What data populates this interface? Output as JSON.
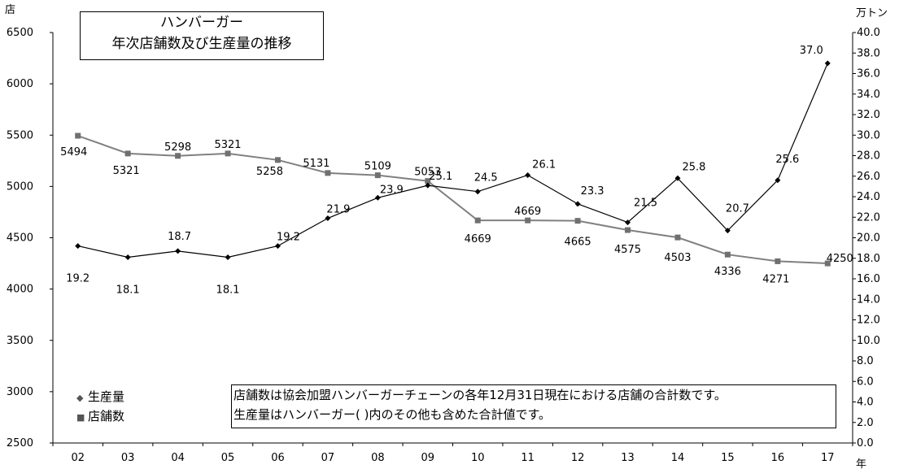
{
  "chart_data": {
    "type": "line",
    "title": [
      "ハンバーガー",
      "年次店舗数及び生産量の推移"
    ],
    "categories": [
      "02",
      "03",
      "04",
      "05",
      "06",
      "07",
      "08",
      "09",
      "10",
      "11",
      "12",
      "13",
      "14",
      "15",
      "16",
      "17"
    ],
    "x_unit": "年",
    "y_left": {
      "unit": "店",
      "min": 2500,
      "max": 6500,
      "ticks": [
        2500,
        3000,
        3500,
        4000,
        4500,
        5000,
        5500,
        6000,
        6500
      ]
    },
    "y_right": {
      "unit": "万トン",
      "min": 0.0,
      "max": 40.0,
      "ticks": [
        "0.0",
        "2.0",
        "4.0",
        "6.0",
        "8.0",
        "10.0",
        "12.0",
        "14.0",
        "16.0",
        "18.0",
        "20.0",
        "22.0",
        "24.0",
        "26.0",
        "28.0",
        "30.0",
        "32.0",
        "34.0",
        "36.0",
        "38.0",
        "40.0"
      ]
    },
    "series": [
      {
        "name": "生産量",
        "axis": "right",
        "color": "#000000",
        "marker": "diamond",
        "values": [
          19.2,
          18.1,
          18.7,
          18.1,
          19.2,
          21.9,
          23.9,
          25.1,
          24.5,
          26.1,
          23.3,
          21.5,
          25.8,
          20.7,
          25.6,
          37.0
        ],
        "labels": [
          "19.2",
          "18.1",
          "18.7",
          "18.1",
          "19.2",
          "21.9",
          "23.9",
          "25.1",
          "24.5",
          "26.1",
          "23.3",
          "21.5",
          "25.8",
          "20.7",
          "25.6",
          "37.0"
        ]
      },
      {
        "name": "店舗数",
        "axis": "left",
        "color": "#808080",
        "marker": "square",
        "values": [
          5494,
          5321,
          5298,
          5321,
          5258,
          5131,
          5109,
          5053,
          4669,
          4669,
          4665,
          4575,
          4503,
          4336,
          4271,
          4250
        ],
        "labels": [
          "5494",
          "5321",
          "5298",
          "5321",
          "5258",
          "5131",
          "5109",
          "5053",
          "4669",
          "4669",
          "4665",
          "4575",
          "4503",
          "4336",
          "4271",
          "4250"
        ]
      }
    ],
    "legend": [
      "生産量",
      "店舗数"
    ],
    "note": [
      "店舗数は協会加盟ハンバーガーチェーンの各年12月31日現在における店舗の合計数です。",
      "生産量はハンバーガー(  )内のその他も含めた合計値です。"
    ]
  }
}
